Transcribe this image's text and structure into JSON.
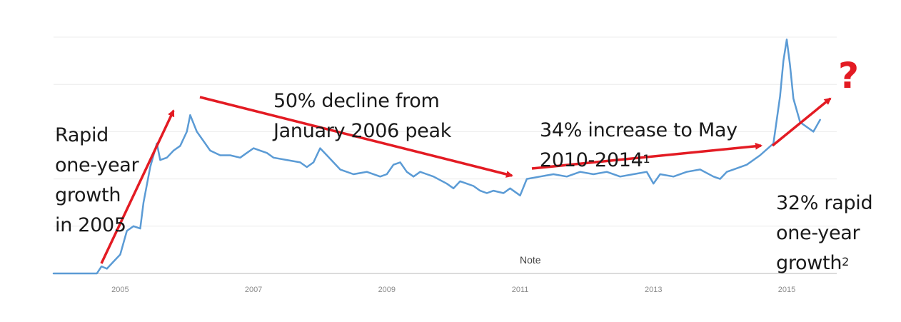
{
  "chart_data": {
    "type": "line",
    "title": "",
    "xlabel": "",
    "ylabel": "",
    "xlim": [
      2004.0,
      2015.75
    ],
    "ylim": [
      0,
      100
    ],
    "grid": true,
    "line_color": "#5b9bd5",
    "annotation_color": "#e31b23",
    "x_ticks": [
      "2005",
      "2007",
      "2009",
      "2011",
      "2013",
      "2015"
    ],
    "x_tick_values": [
      2005,
      2007,
      2009,
      2011,
      2013,
      2015
    ],
    "series": [
      {
        "values": [
          [
            2004.0,
            0
          ],
          [
            2004.6,
            0
          ],
          [
            2004.65,
            0
          ],
          [
            2004.72,
            3
          ],
          [
            2004.8,
            2
          ],
          [
            2004.9,
            5
          ],
          [
            2005.0,
            8
          ],
          [
            2005.1,
            18
          ],
          [
            2005.2,
            20
          ],
          [
            2005.3,
            19
          ],
          [
            2005.35,
            30
          ],
          [
            2005.45,
            45
          ],
          [
            2005.55,
            55
          ],
          [
            2005.6,
            48
          ],
          [
            2005.7,
            49
          ],
          [
            2005.8,
            52
          ],
          [
            2005.9,
            54
          ],
          [
            2006.0,
            60
          ],
          [
            2006.05,
            67
          ],
          [
            2006.15,
            60
          ],
          [
            2006.25,
            56
          ],
          [
            2006.35,
            52
          ],
          [
            2006.5,
            50
          ],
          [
            2006.65,
            50
          ],
          [
            2006.8,
            49
          ],
          [
            2006.9,
            51
          ],
          [
            2007.0,
            53
          ],
          [
            2007.1,
            52
          ],
          [
            2007.2,
            51
          ],
          [
            2007.3,
            49
          ],
          [
            2007.5,
            48
          ],
          [
            2007.7,
            47
          ],
          [
            2007.8,
            45
          ],
          [
            2007.9,
            47
          ],
          [
            2008.0,
            53
          ],
          [
            2008.1,
            50
          ],
          [
            2008.2,
            47
          ],
          [
            2008.3,
            44
          ],
          [
            2008.5,
            42
          ],
          [
            2008.7,
            43
          ],
          [
            2008.9,
            41
          ],
          [
            2009.0,
            42
          ],
          [
            2009.1,
            46
          ],
          [
            2009.2,
            47
          ],
          [
            2009.3,
            43
          ],
          [
            2009.4,
            41
          ],
          [
            2009.5,
            43
          ],
          [
            2009.6,
            42
          ],
          [
            2009.7,
            41
          ],
          [
            2009.9,
            38
          ],
          [
            2010.0,
            36
          ],
          [
            2010.1,
            39
          ],
          [
            2010.2,
            38
          ],
          [
            2010.3,
            37
          ],
          [
            2010.4,
            35
          ],
          [
            2010.5,
            34
          ],
          [
            2010.6,
            35
          ],
          [
            2010.75,
            34
          ],
          [
            2010.85,
            36
          ],
          [
            2011.0,
            33
          ],
          [
            2011.1,
            40
          ],
          [
            2011.3,
            41
          ],
          [
            2011.5,
            42
          ],
          [
            2011.7,
            41
          ],
          [
            2011.9,
            43
          ],
          [
            2012.1,
            42
          ],
          [
            2012.3,
            43
          ],
          [
            2012.5,
            41
          ],
          [
            2012.7,
            42
          ],
          [
            2012.9,
            43
          ],
          [
            2013.0,
            38
          ],
          [
            2013.1,
            42
          ],
          [
            2013.3,
            41
          ],
          [
            2013.5,
            43
          ],
          [
            2013.7,
            44
          ],
          [
            2013.9,
            41
          ],
          [
            2014.0,
            40
          ],
          [
            2014.1,
            43
          ],
          [
            2014.2,
            44
          ],
          [
            2014.4,
            46
          ],
          [
            2014.6,
            50
          ],
          [
            2014.8,
            55
          ],
          [
            2014.9,
            75
          ],
          [
            2014.95,
            90
          ],
          [
            2015.0,
            99
          ],
          [
            2015.05,
            88
          ],
          [
            2015.1,
            74
          ],
          [
            2015.2,
            64
          ],
          [
            2015.3,
            62
          ],
          [
            2015.4,
            60
          ],
          [
            2015.5,
            65
          ]
        ]
      }
    ],
    "annotations": [
      {
        "text": "Rapid\none-year\ngrowth\nin 2005"
      },
      {
        "text": "50% decline from\nJanuary 2006 peak"
      },
      {
        "text": "34% increase to May\n2010-2014",
        "sup": "1"
      },
      {
        "text": "32% rapid\none-year\ngrowth",
        "sup": "2"
      }
    ],
    "question_mark": "?",
    "note": "Note"
  }
}
